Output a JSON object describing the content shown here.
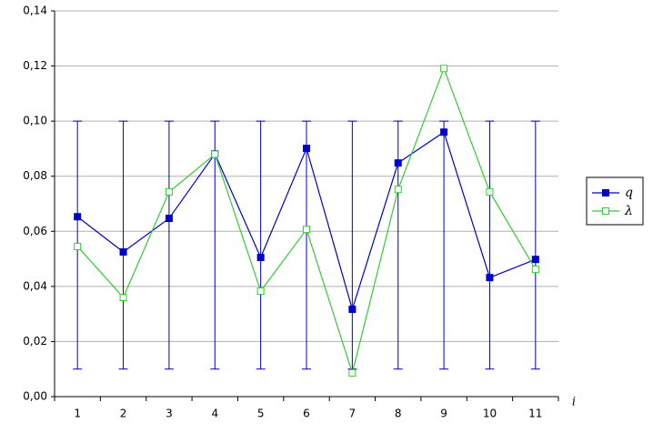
{
  "chart_data": {
    "type": "line",
    "x_label": "i",
    "categories": [
      "1",
      "2",
      "3",
      "4",
      "5",
      "6",
      "7",
      "8",
      "9",
      "10",
      "11"
    ],
    "series": [
      {
        "name": "q",
        "color": "#0000cc",
        "values": [
          0.0653,
          0.0525,
          0.0647,
          0.0881,
          0.0505,
          0.0901,
          0.0317,
          0.0848,
          0.096,
          0.0432,
          0.0498
        ]
      },
      {
        "name": "λ",
        "color": "#33cc33",
        "values": [
          0.0545,
          0.036,
          0.0743,
          0.088,
          0.0383,
          0.0607,
          0.0086,
          0.0752,
          0.1191,
          0.0743,
          0.0462
        ]
      }
    ],
    "range_color": "#0000cc",
    "range_low": [
      0.01,
      0.01,
      0.01,
      0.01,
      0.01,
      0.01,
      0.01,
      0.01,
      0.01,
      0.01,
      0.01
    ],
    "range_high": [
      0.1,
      0.1,
      0.1,
      0.1,
      0.1,
      0.1,
      0.1,
      0.1,
      0.1,
      0.1,
      0.1
    ],
    "ylim": [
      0,
      0.14
    ],
    "yticks": [
      {
        "value": 0,
        "label": "0,00"
      },
      {
        "value": 0.02,
        "label": "0,02"
      },
      {
        "value": 0.04,
        "label": "0,04"
      },
      {
        "value": 0.06,
        "label": "0,06"
      },
      {
        "value": 0.08,
        "label": "0,08"
      },
      {
        "value": 0.1,
        "label": "0,10"
      },
      {
        "value": 0.12,
        "label": "0,12"
      },
      {
        "value": 0.14,
        "label": "0,14"
      }
    ],
    "grid": true,
    "legend": "right"
  }
}
